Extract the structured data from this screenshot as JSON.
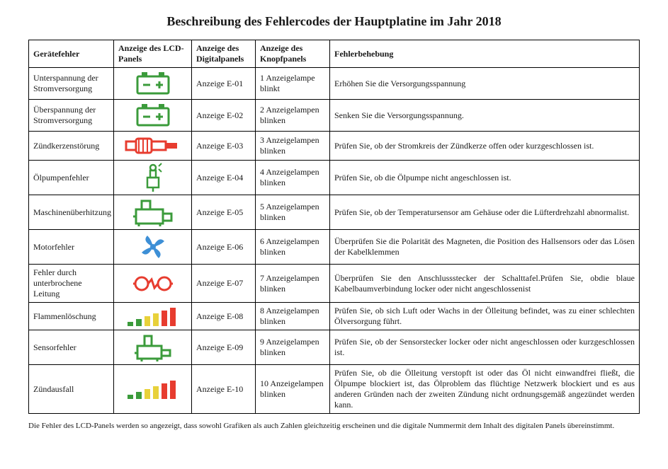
{
  "title": "Beschreibung des Fehlercodes der Hauptplatine im Jahr 2018",
  "columns": [
    "Gerätefehler",
    "Anzeige des LCD-Panels",
    "Anzeige des Digitalpanels",
    "Anzeige des Knopfpanels",
    "Fehlerbehebung"
  ],
  "rows": [
    {
      "fault": "Unterspannung der Stromversorgung",
      "icon": "battery",
      "icon_color": "#3b9b3b",
      "digital": "Anzeige E-01",
      "button": "1 Anzeigelampe blinkt",
      "fix": "Erhöhen Sie die Versorgungsspannung"
    },
    {
      "fault": "Überspannung der Stromversorgung",
      "icon": "battery",
      "icon_color": "#3b9b3b",
      "digital": "Anzeige E-02",
      "button": "2 Anzeigelampen blinken",
      "fix": "Senken Sie die Versorgungsspannung."
    },
    {
      "fault": "Zündkerzenstörung",
      "icon": "sparkplug",
      "icon_color": "#e73c2f",
      "digital": "Anzeige E-03",
      "button": "3 Anzeigelampen blinken",
      "fix": "Prüfen Sie, ob der Stromkreis der Zündkerze offen oder kurzgeschlossen ist."
    },
    {
      "fault": "Ölpumpenfehler",
      "icon": "oilpump",
      "icon_color": "#3b9b3b",
      "digital": "Anzeige E-04",
      "button": "4 Anzeigelampen blinken",
      "fix": "Prüfen Sie, ob die Ölpumpe nicht angeschlossen ist."
    },
    {
      "fault": "Maschinenüberhitzung",
      "icon": "machine",
      "icon_color": "#3b9b3b",
      "digital": "Anzeige E-05",
      "button": "5 Anzeigelampen blinken",
      "fix": "Prüfen Sie, ob der Temperatursensor am Gehäuse oder die Lüfterdrehzahl abnormalist."
    },
    {
      "fault": "Motorfehler",
      "icon": "fan",
      "icon_color": "#3d8fd6",
      "digital": "Anzeige E-06",
      "button": "6 Anzeigelampen blinken",
      "fix": "Überprüfen Sie die Polarität des Magneten, die Position des Hallsensors oder das Lösen der Kabelklemmen"
    },
    {
      "fault": "Fehler durch unterbrochene Leitung",
      "icon": "brokenwire",
      "icon_color": "#e73c2f",
      "digital": "Anzeige E-07",
      "button": "7 Anzeigelampen blinken",
      "fix": "Überprüfen Sie den Anschlussstecker der Schalttafel.Prüfen Sie, obdie blaue Kabelbaumverbindung locker oder nicht angeschlossenist"
    },
    {
      "fault": "Flammenlöschung",
      "icon": "bars",
      "icon_color": "multi",
      "digital": "Anzeige E-08",
      "button": "8 Anzeigelampen blinken",
      "fix": "Prüfen Sie, ob sich Luft oder Wachs in der Ölleitung befindet, was zu einer schlechten Ölversorgung führt."
    },
    {
      "fault": "Sensorfehler",
      "icon": "sensor",
      "icon_color": "#3b9b3b",
      "digital": "Anzeige E-09",
      "button": "9 Anzeigelampen blinken",
      "fix": "Prüfen Sie, ob der Sensorstecker locker oder nicht angeschlossen oder kurzgeschlossen ist."
    },
    {
      "fault": "Zündausfall",
      "icon": "bars",
      "icon_color": "multi",
      "digital": "Anzeige E-10",
      "button": "10 Anzeigelampen blinken",
      "fix": "Prüfen Sie, ob die Ölleitung verstopft ist oder das Öl nicht einwandfrei fließt, die Ölpumpe blockiert ist, das Ölproblem das flüchtige Netzwerk blockiert und es aus anderen Gründen nach der zweiten Zündung nicht ordnungsgemäß angezündet werden kann."
    }
  ],
  "bar_colors": [
    "#3b9b3b",
    "#3b9b3b",
    "#e8d13a",
    "#e8d13a",
    "#e73c2f",
    "#e73c2f"
  ],
  "footnote": "Die Fehler des LCD-Panels werden so angezeigt, dass sowohl Grafiken als auch Zahlen gleichzeitig erscheinen und die digitale Nummermit dem Inhalt des digitalen Panels übereinstimmt."
}
